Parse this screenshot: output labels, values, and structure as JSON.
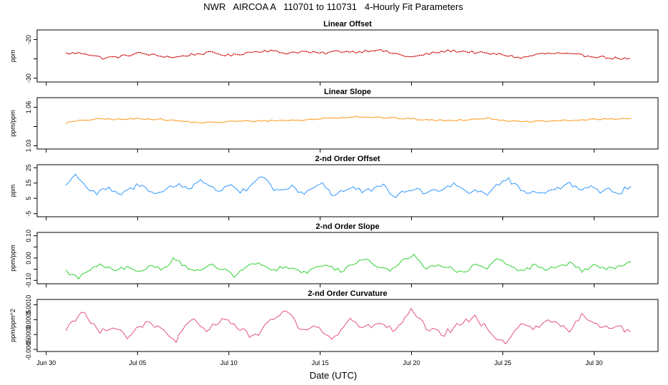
{
  "main_title": "NWR   AIRCOA A   110701 to 110731   4-Hourly Fit Parameters",
  "x_axis": {
    "label": "Date (UTC)",
    "ticks": [
      {
        "day": 0,
        "label": "Jun 30"
      },
      {
        "day": 5,
        "label": "Jul 05"
      },
      {
        "day": 10,
        "label": "Jul 10"
      },
      {
        "day": 15,
        "label": "Jul 15"
      },
      {
        "day": 20,
        "label": "Jul 20"
      },
      {
        "day": 25,
        "label": "Jul 25"
      },
      {
        "day": 30,
        "label": "Jul 30"
      }
    ],
    "range_days": [
      -0.5,
      33.5
    ]
  },
  "chart_data": [
    {
      "type": "line",
      "title": "Linear Offset",
      "ylabel": "ppm",
      "ylim": [
        -31,
        -17.5
      ],
      "yticks": [
        {
          "v": -20,
          "label": "-20"
        },
        {
          "v": -25,
          "label": ""
        },
        {
          "v": -30,
          "label": "-30"
        }
      ],
      "color": "#cc0000",
      "x_range_days": [
        1.1,
        32.0
      ],
      "mean": -24.0,
      "amplitude": 1.0,
      "noise": 0.35,
      "approx_values": [
        -23.6,
        -23.5,
        -24.8,
        -24.4,
        -23.5,
        -24.2,
        -24.6,
        -23.8,
        -23.4,
        -24.2,
        -23.3,
        -22.8,
        -23.5,
        -23.1,
        -23.6,
        -23.0,
        -23.2,
        -22.6,
        -23.6,
        -24.6,
        -23.6,
        -22.9,
        -23.1,
        -23.6,
        -23.9,
        -24.8,
        -23.7,
        -23.6,
        -24.0,
        -24.3,
        -24.8,
        -25.0
      ]
    },
    {
      "type": "line",
      "title": "Linear Slope",
      "ylabel": "ppm/ppm",
      "ylim": [
        1.0275,
        1.0675
      ],
      "yticks": [
        {
          "v": 1.03,
          "label": "1.03"
        },
        {
          "v": 1.045,
          "label": ""
        },
        {
          "v": 1.06,
          "label": "1.06"
        }
      ],
      "color": "#ff8c00",
      "x_range_days": [
        1.1,
        32.0
      ],
      "mean": 1.05,
      "amplitude": 0.0017,
      "noise": 0.0006,
      "approx_values": [
        1.048,
        1.05,
        1.051,
        1.0505,
        1.0512,
        1.0508,
        1.0496,
        1.0483,
        1.048,
        1.049,
        1.0492,
        1.0496,
        1.0498,
        1.05,
        1.0512,
        1.052,
        1.0528,
        1.0522,
        1.0515,
        1.051,
        1.05,
        1.0496,
        1.0505,
        1.0515,
        1.05,
        1.0485,
        1.049,
        1.0495,
        1.05,
        1.0505,
        1.051,
        1.0515
      ]
    },
    {
      "type": "line",
      "title": "2-nd Order Offset",
      "ylabel": "ppm",
      "ylim": [
        -7,
        27
      ],
      "yticks": [
        {
          "v": 25,
          "label": "25"
        },
        {
          "v": 15,
          "label": "15"
        },
        {
          "v": 5,
          "label": "5"
        },
        {
          "v": -5,
          "label": "-5"
        }
      ],
      "color": "#1e90ff",
      "x_range_days": [
        1.1,
        32.0
      ],
      "mean": 10.0,
      "amplitude": 5.0,
      "noise": 1.6,
      "approx_values": [
        14,
        21,
        12,
        8,
        12,
        7,
        10,
        14,
        11,
        8,
        12,
        14,
        11,
        18,
        12,
        10,
        15,
        9,
        12,
        20,
        12,
        9,
        13,
        8,
        12,
        15,
        7,
        10,
        12,
        9,
        11,
        13,
        6,
        9,
        12,
        8,
        10,
        13,
        15,
        9,
        11,
        8,
        14,
        18,
        12,
        8,
        10,
        9,
        12,
        16,
        10,
        13,
        8,
        11,
        9,
        14
      ]
    },
    {
      "type": "line",
      "title": "2-nd Order Slope",
      "ylabel": "ppm/ppm",
      "ylim": [
        -0.115,
        0.115
      ],
      "yticks": [
        {
          "v": 0.1,
          "label": "0.10"
        },
        {
          "v": 0.05,
          "label": ""
        },
        {
          "v": 0.0,
          "label": "0.00"
        },
        {
          "v": -0.05,
          "label": ""
        },
        {
          "v": -0.1,
          "label": "-0.10"
        }
      ],
      "color": "#22cc22",
      "x_range_days": [
        1.1,
        32.0
      ],
      "mean": -0.045,
      "amplitude": 0.025,
      "noise": 0.008,
      "approx_values": [
        -0.06,
        -0.09,
        -0.05,
        -0.03,
        -0.06,
        -0.04,
        -0.07,
        -0.03,
        -0.05,
        0.0,
        -0.04,
        -0.06,
        -0.03,
        -0.05,
        -0.08,
        -0.04,
        -0.02,
        -0.06,
        -0.04,
        -0.05,
        -0.07,
        -0.03,
        -0.04,
        -0.06,
        -0.02,
        0.0,
        -0.04,
        -0.06,
        -0.01,
        0.02,
        -0.05,
        -0.03,
        -0.04,
        -0.07,
        -0.03,
        -0.05,
        0.0,
        -0.04,
        -0.06,
        -0.03,
        -0.05,
        -0.04,
        -0.02,
        -0.06,
        -0.03,
        -0.05,
        -0.04,
        -0.02
      ]
    },
    {
      "type": "line",
      "title": "2-nd Order Curvature",
      "ylabel": "ppm/ppm^2",
      "ylim": [
        -0.00057,
        0.00118
      ],
      "yticks": [
        {
          "v": 0.001,
          "label": "0.0010"
        },
        {
          "v": 0.0005,
          "label": "0.0005"
        },
        {
          "v": 0.0,
          "label": "0.0000"
        },
        {
          "v": -0.0005,
          "label": "-0.0005"
        }
      ],
      "color": "#e0457b",
      "x_range_days": [
        1.1,
        32.0
      ],
      "mean": 0.00015,
      "amplitude": 0.00025,
      "noise": 0.0001,
      "approx_values": [
        0.0002,
        0.0008,
        0.0001,
        0.0003,
        -0.0001,
        0.0004,
        0.0002,
        -0.0002,
        0.0005,
        0.0001,
        0.0006,
        0.0002,
        -0.0001,
        0.0004,
        0.0009,
        0.0001,
        0.0003,
        -0.0002,
        0.0005,
        0.0002,
        0.0004,
        0.0001,
        0.0008,
        0.0002,
        0.0,
        0.0003,
        0.0006,
        0.0001,
        -0.0003,
        0.0004,
        0.0002,
        0.0005,
        0.0001,
        0.0007,
        0.0002,
        0.0003,
        0.0001
      ]
    }
  ]
}
